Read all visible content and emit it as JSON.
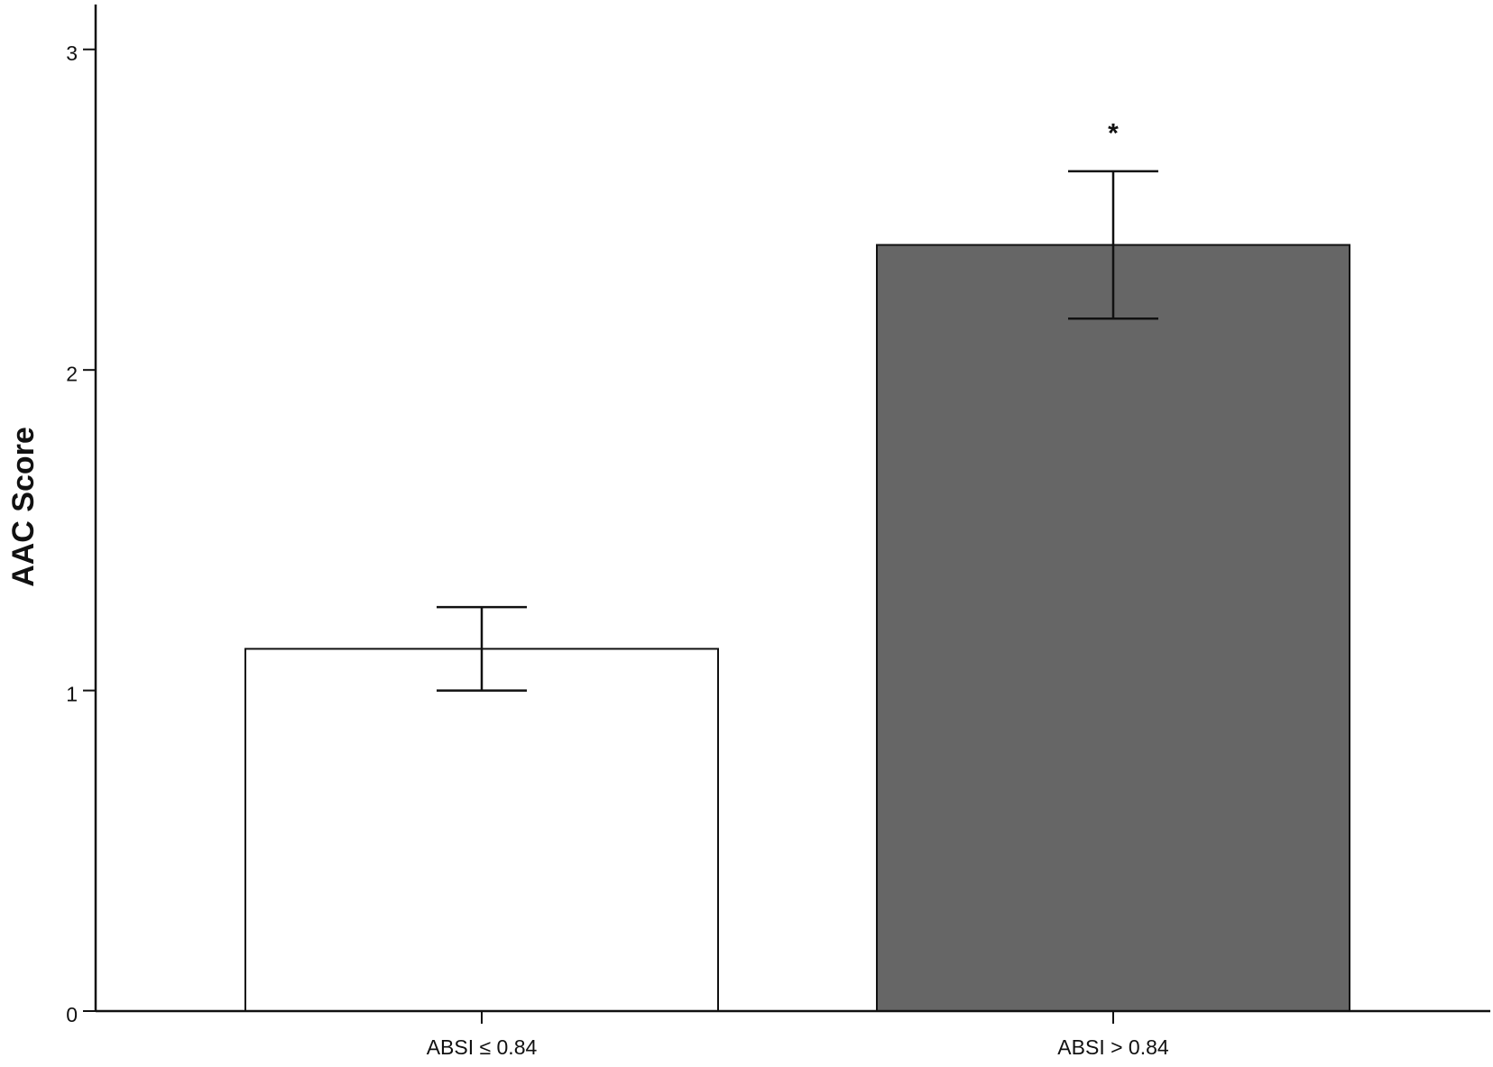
{
  "chart_data": {
    "type": "bar",
    "y_label": "AAC Score",
    "categories": [
      "ABSI ≤ 0.84",
      "ABSI > 0.84"
    ],
    "values": [
      1.13,
      2.39
    ],
    "errors": [
      0.13,
      0.23
    ],
    "colors": [
      "#ffffff",
      "#666666"
    ],
    "ylim": [
      0,
      3.14
    ],
    "yticks": [
      0,
      1,
      2,
      3
    ],
    "grid": false,
    "annotations": [
      {
        "text": "*",
        "category": "ABSI > 0.84"
      }
    ]
  }
}
